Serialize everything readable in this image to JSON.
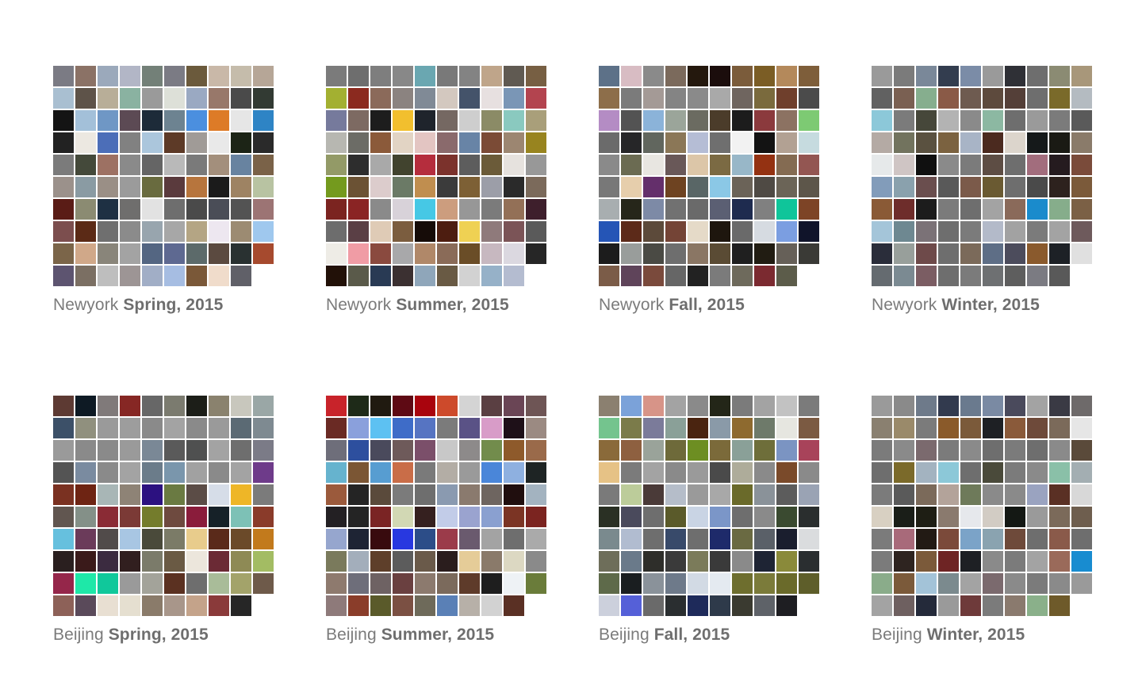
{
  "panels": [
    {
      "city": "Newyork",
      "season": "Spring, 2015",
      "colors": [
        "#7b7b84",
        "#8b7266",
        "#9ba9bb",
        "#b2b6c6",
        "#738078",
        "#7b7b84",
        "#6b5a3c",
        "#c9b8a8",
        "#c5bcab",
        "#b6a697",
        "#a9bfd1",
        "#5e5349",
        "#b8ae98",
        "#8ab2a1",
        "#9a9a9a",
        "#dde0d8",
        "#9aa9c2",
        "#98786a",
        "#4a4a4a",
        "#323a33",
        "#141414",
        "#a3c0d9",
        "#6f97c5",
        "#5c4a54",
        "#1d2b39",
        "#6d8391",
        "#4b8fdf",
        "#dd7b27",
        "#e6e6e6",
        "#2e84c5",
        "#222222",
        "#ece8e1",
        "#4c6eb8",
        "#818181",
        "#abc6dc",
        "#5d3a27",
        "#a09b97",
        "#e9e9e9",
        "#1c2416",
        "#2a2a2a",
        "#7b7b7b",
        "#44493a",
        "#9d7163",
        "#8a8a8a",
        "#656565",
        "#b9b9b9",
        "#7a7a7a",
        "#a38f7c",
        "#6883a0",
        "#7a6248",
        "#9b918b",
        "#8a9ba3",
        "#9a8f86",
        "#9b9b9b",
        "#696b3f",
        "#5a3a3d",
        "#b7753d",
        "#1b1b1b",
        "#9e8363",
        "#b8c3a2",
        "#5a1c16",
        "#8b8b72",
        "#1e3043",
        "#6f6e6d",
        "#e2e2e2",
        "#6e6e6e",
        "#4a4a4a",
        "#4a4d57",
        "#535353",
        "#9c7474",
        "#7c4e4e",
        "#5b2a16",
        "#6f6f6f",
        "#8b8b8b",
        "#98a5ae",
        "#a7a7a7",
        "#b4a584",
        "#ede7f0",
        "#9c8b72",
        "#9fc8ee",
        "#7b6549",
        "#d0a889",
        "#89857a",
        "#a3a3a3",
        "#546682",
        "#5e6991",
        "#5c6a6a",
        "#5b4a40",
        "#293131",
        "#a64a2e",
        "#5d5470",
        "#7b6f63",
        "#bebebe",
        "#9d9595",
        "#a1aec6",
        "#a6bde2",
        "#7a5838",
        "#f0dccb",
        "#606068"
      ]
    },
    {
      "city": "Newyork",
      "season": "Summer, 2015",
      "colors": [
        "#7b7b7b",
        "#6e6e6e",
        "#7e7e7e",
        "#888888",
        "#6aa7b1",
        "#797979",
        "#838383",
        "#bfa58a",
        "#605a52",
        "#775f43",
        "#a3b031",
        "#8b2a1f",
        "#8b6a5a",
        "#8b8380",
        "#808a96",
        "#d3c8bf",
        "#44536a",
        "#e7e0e0",
        "#7a96b6",
        "#b3444f",
        "#767a9c",
        "#7d6a62",
        "#1d1d1d",
        "#f2bf2e",
        "#1f242c",
        "#756862",
        "#cecece",
        "#8b8b66",
        "#8ac9bf",
        "#a99f7a",
        "#b7b7b1",
        "#6c6c66",
        "#8b5a3a",
        "#e2d4c4",
        "#e3c5c2",
        "#8a6a6c",
        "#6884a6",
        "#7b4b36",
        "#9c8671",
        "#98841f",
        "#939a67",
        "#2d2d2d",
        "#a9a9a9",
        "#41432e",
        "#b52d3d",
        "#7b322c",
        "#5d5d5d",
        "#6b5b39",
        "#e6e2de",
        "#989898",
        "#749a1e",
        "#6b5234",
        "#dccccc",
        "#6b7a66",
        "#c08e4f",
        "#3b3b3b",
        "#7d6035",
        "#9c9ea8",
        "#2a2a2a",
        "#7b6a5b",
        "#7b2420",
        "#8a2424",
        "#8a8a8a",
        "#d8d2d9",
        "#46c8e5",
        "#cc9d7e",
        "#979797",
        "#7b7b7b",
        "#937057",
        "#3e1f2c",
        "#6d6d6d",
        "#5a3f45",
        "#dfcbb6",
        "#7b5d3f",
        "#160c08",
        "#4d1d10",
        "#efd153",
        "#8f7a7b",
        "#7b5457",
        "#5a5a5a",
        "#eeece6",
        "#f09ca5",
        "#8a4a3f",
        "#a8a8aa",
        "#b08869",
        "#8a6b58",
        "#6a4d27",
        "#c7b8c0",
        "#dbd8e0",
        "#262626",
        "#221108",
        "#5a5a4a",
        "#293a54",
        "#3b3031",
        "#8fa6ba",
        "#695a44",
        "#d2d2d2",
        "#96b1c8",
        "#b4bcd0"
      ]
    },
    {
      "city": "Newyork",
      "season": "Fall, 2015",
      "colors": [
        "#5d7188",
        "#d8bcc3",
        "#8a8a8a",
        "#7b6a5c",
        "#24180d",
        "#1b0d0c",
        "#7b5c3b",
        "#7b5d25",
        "#b4895b",
        "#7e5e3a",
        "#8d6e4a",
        "#7b7b7b",
        "#a49a96",
        "#848484",
        "#8a8a8a",
        "#a9a9a9",
        "#6f655f",
        "#7a6a3d",
        "#6f3f2c",
        "#4b4b4b",
        "#b48cc4",
        "#535353",
        "#8bb3d9",
        "#9ba59a",
        "#6b6b61",
        "#4b3c2a",
        "#1c1c1c",
        "#8b3a3d",
        "#8c7262",
        "#7dca73",
        "#6b6b6b",
        "#262628",
        "#61665e",
        "#8b7757",
        "#b5bdd5",
        "#6f6f6f",
        "#f2f2f2",
        "#131313",
        "#b2a193",
        "#c6dbdf",
        "#8a8a8a",
        "#6b6b52",
        "#e8e6e1",
        "#695858",
        "#dcc6a8",
        "#7b6a43",
        "#98b7c8",
        "#943212",
        "#846b52",
        "#935652",
        "#787878",
        "#e6ceac",
        "#642f6b",
        "#6e4321",
        "#596666",
        "#8bc8e6",
        "#6b6358",
        "#4f4a44",
        "#6b6457",
        "#5d564a",
        "#a8aeb0",
        "#26261a",
        "#7d8aa6",
        "#717171",
        "#6a6a6a",
        "#5b5f73",
        "#1e2b4f",
        "#808080",
        "#0fc59a",
        "#7d4426",
        "#2555b6",
        "#5c2a19",
        "#5c4a3a",
        "#744436",
        "#e5dac8",
        "#1e160e",
        "#6a6a6a",
        "#d6dbe1",
        "#7b9ee1",
        "#10142a",
        "#1c1c1c",
        "#999d9b",
        "#4a4a44",
        "#6e6e6e",
        "#8a7664",
        "#5a4b34",
        "#1f1f1f",
        "#211c12",
        "#666058",
        "#3a3a36",
        "#7b5c48",
        "#5f445a",
        "#7a4a3c",
        "#666666",
        "#222222",
        "#7b7b7b",
        "#6e6a5c",
        "#7b2a30",
        "#5c5c4a"
      ]
    },
    {
      "city": "Newyork",
      "season": "Winter, 2015",
      "colors": [
        "#9a9a9a",
        "#7b7b7b",
        "#7a8899",
        "#333d4f",
        "#7b8ca7",
        "#9a9a9a",
        "#2f3036",
        "#6e6e6e",
        "#8b8b73",
        "#a8977a",
        "#616161",
        "#7a6052",
        "#86ae8e",
        "#8a5a47",
        "#6e5b50",
        "#5d4a3d",
        "#543f38",
        "#6e6e6e",
        "#7a6a2a",
        "#b4bbc1",
        "#8cc8d9",
        "#7b7b7b",
        "#46473a",
        "#b3b3b3",
        "#8a8a8a",
        "#8cb8a2",
        "#6e6e6e",
        "#9a9a9a",
        "#7b7b7b",
        "#5a5a5a",
        "#b4aaa4",
        "#72735e",
        "#5a5140",
        "#7b6240",
        "#a8b4c6",
        "#4b2a1f",
        "#dcd5cc",
        "#15191a",
        "#1a1a14",
        "#8a7b6a",
        "#e6e9ea",
        "#cfc5c4",
        "#101010",
        "#8a8a8a",
        "#7b7b7b",
        "#5d4d44",
        "#6e6e6e",
        "#a26d7d",
        "#251b1f",
        "#7a4b3a",
        "#829cba",
        "#8aa1ad",
        "#6a4e4e",
        "#595959",
        "#7b5a4a",
        "#6a5a32",
        "#6e6e6e",
        "#4a4a4a",
        "#2d221e",
        "#7b5a3a",
        "#8a5a36",
        "#6e2d2b",
        "#1c1c1c",
        "#7b7b7b",
        "#6e6e6e",
        "#a3a3a3",
        "#8a6a5a",
        "#1a8bcc",
        "#86ad8b",
        "#7b6045",
        "#a4c5d9",
        "#6e8891",
        "#7b7277",
        "#6e6e6e",
        "#7b7b7b",
        "#b3bac9",
        "#a2a2a2",
        "#7b7b7b",
        "#a3a3a3",
        "#6e5a5c",
        "#2a2d3a",
        "#989f9b",
        "#6e4a4a",
        "#6e6e6e",
        "#7b6a5a",
        "#5e6e86",
        "#4c4c5c",
        "#8a5a2d",
        "#1d2126",
        "#e0e0e0",
        "#656b70",
        "#7b8a92",
        "#7b5d63",
        "#6e6e6e",
        "#7b7b7b",
        "#6e7072",
        "#5e5e5e",
        "#7b7b82",
        "#595959"
      ]
    },
    {
      "city": "Beijing",
      "season": "Spring, 2015",
      "colors": [
        "#5d3a33",
        "#0e1a24",
        "#807a7a",
        "#862724",
        "#676767",
        "#7b7b6f",
        "#1c1e18",
        "#8a826e",
        "#c8c7bd",
        "#9aa7a6",
        "#3c5068",
        "#90907e",
        "#9a9a9a",
        "#9d9d9d",
        "#8a8a8a",
        "#a3a3a3",
        "#8a8a8a",
        "#9a9a9a",
        "#5b6a74",
        "#7e8a91",
        "#9a9a9a",
        "#8a8a8a",
        "#8a8a8a",
        "#9a9a9a",
        "#7a8896",
        "#5a5a5a",
        "#4f5050",
        "#a3a3a3",
        "#6e6e6e",
        "#7b7b87",
        "#545454",
        "#7a8ba0",
        "#8a8a8a",
        "#a3a3a3",
        "#6b7c8a",
        "#7a96ac",
        "#a1a1a1",
        "#8a8a8a",
        "#a3a3a3",
        "#6e3b8a",
        "#7a3121",
        "#6e2413",
        "#a8b6b6",
        "#8e8376",
        "#2c1180",
        "#6a7a42",
        "#5b4c46",
        "#d6dde8",
        "#eeb627",
        "#7b7b7b",
        "#615650",
        "#849088",
        "#8a2b35",
        "#7b3a36",
        "#747c2c",
        "#6e4a3f",
        "#8a1c3b",
        "#162128",
        "#7dc1b6",
        "#8a3b2a",
        "#66c0de",
        "#6b3b5a",
        "#514b4a",
        "#a8c6e3",
        "#4a4a3a",
        "#7b7b67",
        "#e8cc8c",
        "#5a2a1a",
        "#6b4a29",
        "#c27a1c",
        "#2a1f1f",
        "#3a1a1a",
        "#3b2b40",
        "#311f1f",
        "#7b7b6a",
        "#6a5a44",
        "#ece6dc",
        "#6b2a35",
        "#8e8a55",
        "#a3bc63",
        "#95264a",
        "#1ee8a8",
        "#10c89b",
        "#9a9a9a",
        "#a3a39a",
        "#5b3121",
        "#6e6e6e",
        "#a9bc99",
        "#a3a36a",
        "#6e5a4a",
        "#8d6158",
        "#5a4a5a",
        "#e8dfd2",
        "#e5dfd0",
        "#8a7b6a",
        "#a8968a",
        "#c4a38a",
        "#8a3a3a",
        "#262626"
      ]
    },
    {
      "city": "Beijing",
      "season": "Summer, 2015",
      "colors": [
        "#c8232a",
        "#1e2a18",
        "#201a10",
        "#5e0a14",
        "#a9040d",
        "#cd4a2b",
        "#d4d4d4",
        "#5a3f42",
        "#6a4555",
        "#6e5555",
        "#6a2a24",
        "#8aa0dc",
        "#5dc1f2",
        "#3e6cc8",
        "#5674c2",
        "#7b7b7b",
        "#5a5286",
        "#d89cc8",
        "#1e1018",
        "#9b8a82",
        "#6e6e7a",
        "#2d4f9e",
        "#4a4a5c",
        "#6e5a5a",
        "#7b4f6a",
        "#c8c8c8",
        "#8d8a8a",
        "#728c4c",
        "#8e5a2b",
        "#9a6a4a",
        "#66b3ce",
        "#7b5634",
        "#579dd1",
        "#c96d48",
        "#7a7a7a",
        "#b3ada5",
        "#9a9a9a",
        "#4a86d9",
        "#8eb0e0",
        "#1e2424",
        "#9b5a3c",
        "#242424",
        "#5a4a3b",
        "#7b7b7b",
        "#6e6e6e",
        "#8a9ab0",
        "#8a7a6e",
        "#6e6560",
        "#200e0e",
        "#a3b3c0",
        "#232023",
        "#242424",
        "#7a2424",
        "#d2d8b4",
        "#35201f",
        "#c2cce8",
        "#9aa3cf",
        "#8aa0d0",
        "#7b3424",
        "#7b2420",
        "#96a6ce",
        "#1e2434",
        "#380a0e",
        "#2838e0",
        "#2c4d88",
        "#9b3b4a",
        "#6a5a6e",
        "#a3a3a3",
        "#6e6e6e",
        "#aaaaaa",
        "#7a7a5c",
        "#a3aebb",
        "#5e3f2a",
        "#5c5c5c",
        "#6a5a4a",
        "#2a1d1d",
        "#e5cc98",
        "#8a7a6a",
        "#dcd8c2",
        "#8a8a8a",
        "#8e7a6e",
        "#6e6e7a",
        "#6e6263",
        "#6a4040",
        "#8c7a6e",
        "#7b6a5c",
        "#5e3b2a",
        "#1e1e1e",
        "#eef2f5",
        "#6a7c3a",
        "#8e7a7a",
        "#8a3d2a",
        "#5a5a2a",
        "#7b5043",
        "#6e6a5a",
        "#5a80b6",
        "#b7b0a8",
        "#d2d2d2",
        "#5a3024"
      ]
    },
    {
      "city": "Beijing",
      "season": "Fall, 2015",
      "colors": [
        "#8b8070",
        "#7ba2d9",
        "#d79488",
        "#a3a3a3",
        "#8a8a8a",
        "#232618",
        "#7b7b7b",
        "#a3a3a3",
        "#c2c2c2",
        "#7b7b7b",
        "#74c48e",
        "#7b7b4a",
        "#7b7b9a",
        "#8aa098",
        "#4a2410",
        "#8a9aa8",
        "#8e6a2f",
        "#6e7a6a",
        "#e6e6e0",
        "#7b5a42",
        "#8a6a3a",
        "#8e6040",
        "#9aa39a",
        "#6e6a3a",
        "#6d8e22",
        "#7b6a3a",
        "#8aa098",
        "#6e6e3a",
        "#7b94c2",
        "#a8435a",
        "#e6c286",
        "#7b7b7b",
        "#a3a3a3",
        "#8a8a8a",
        "#9a9a9a",
        "#4a4a4a",
        "#aeac9a",
        "#8a8a8a",
        "#7a4a2a",
        "#8a8a8a",
        "#7a7a7a",
        "#bccc9a",
        "#4a3a38",
        "#b5bdc9",
        "#9a9a9a",
        "#a8a8a8",
        "#6a6a2a",
        "#8a9299",
        "#5c5c5c",
        "#9aa3b4",
        "#2a3024",
        "#4a4a5c",
        "#6e6e6e",
        "#5a5a2a",
        "#c9d4e4",
        "#7b96c8",
        "#6e6e6e",
        "#8a8a8a",
        "#3a4a30",
        "#2a2e2e",
        "#7a8a8e",
        "#b1bcd0",
        "#6e6e6e",
        "#384a6a",
        "#6e6e6e",
        "#1e2a6a",
        "#6a6a42",
        "#5a6068",
        "#1a1e2e",
        "#dadcde",
        "#6e6e5a",
        "#6a7a8a",
        "#2e2e2a",
        "#3a3a3a",
        "#7b7b5a",
        "#3a3a3a",
        "#8a8a8a",
        "#1e2434",
        "#8a8a3a",
        "#2a2e30",
        "#5e6a4a",
        "#1a1e20",
        "#8a929a",
        "#6e7a8a",
        "#d2dae4",
        "#e4eaf0",
        "#6e6e2e",
        "#7b7b3a",
        "#6a6a2a",
        "#5e5e2a",
        "#ccd0dc",
        "#5560d8",
        "#6a6a6a",
        "#2a2e30",
        "#1e2a5a",
        "#2e3a4a",
        "#3a3a30",
        "#5e6268",
        "#1e1e22"
      ]
    },
    {
      "city": "Beijing",
      "season": "Winter, 2015",
      "colors": [
        "#9a9a9a",
        "#8a8a8a",
        "#6e7a8a",
        "#323a4e",
        "#6a7a8e",
        "#7a8aa3",
        "#4a4a5c",
        "#a3a3a3",
        "#3a3a44",
        "#6e6a6a",
        "#8a8070",
        "#9a8a6a",
        "#7b7b7b",
        "#8a5a2a",
        "#7b5a3a",
        "#1e2024",
        "#8a5a3a",
        "#6e4a3a",
        "#7b6a5a",
        "#e6e6e6",
        "#7b7b7b",
        "#8a8a8a",
        "#7b6a6e",
        "#7b7b7b",
        "#8a8a8a",
        "#6e6e6e",
        "#7b7b7b",
        "#6e6e6e",
        "#8a8a8a",
        "#5a4a3a",
        "#6e6e6e",
        "#7b6a2a",
        "#a3b3c0",
        "#8cc8d8",
        "#6e6e6e",
        "#4a4a3a",
        "#7b7b7b",
        "#8a8a8a",
        "#8ac0a8",
        "#a3aeb2",
        "#7b7b7b",
        "#5a5a5a",
        "#7b6a5a",
        "#b3a39a",
        "#6e7a5a",
        "#8a8a8a",
        "#8a8a8a",
        "#9aa3c0",
        "#5a3024",
        "#d8d8d8",
        "#d8d0c2",
        "#1a1e18",
        "#1e1e14",
        "#8a7a6e",
        "#e6e8ec",
        "#d2ccc4",
        "#141814",
        "#9a9a9a",
        "#7b6a5a",
        "#6e5e4e",
        "#7b7b7b",
        "#a86a7a",
        "#221a14",
        "#7b4a3a",
        "#7ba3c8",
        "#8aa3b0",
        "#6e4a3a",
        "#6e6e6e",
        "#8a5a4a",
        "#6e6e6e",
        "#7b7b7b",
        "#2e2420",
        "#7b5a3a",
        "#6e2424",
        "#1e2024",
        "#8a8a8a",
        "#7b7b7b",
        "#a3a3a3",
        "#9a6a5a",
        "#188cd0",
        "#8aac8a",
        "#7b5a3a",
        "#a3c3d8",
        "#7b8a8e",
        "#a3a3a3",
        "#7b6a6e",
        "#8a8a8a",
        "#7b7b7b",
        "#8a8a8a",
        "#9a9a9a",
        "#a3a3a3",
        "#6e6060",
        "#242a3a",
        "#9a9a9a",
        "#6e3a3a",
        "#7b7b7b",
        "#8a7a6e",
        "#8ab08a",
        "#6e5a2a"
      ]
    }
  ]
}
